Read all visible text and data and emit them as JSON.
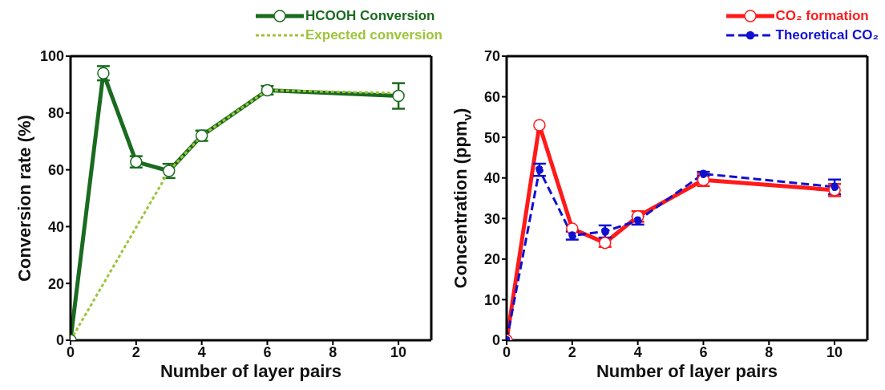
{
  "chart_data": [
    {
      "type": "line",
      "xlabel": "Number of layer pairs",
      "ylabel": "Conversion rate (%)",
      "xlim": [
        0,
        11
      ],
      "xticks": [
        0,
        2,
        4,
        6,
        8,
        10
      ],
      "ylim": [
        0,
        100
      ],
      "yticks": [
        0,
        20,
        40,
        60,
        80,
        100
      ],
      "legend": "top right",
      "series": [
        {
          "name": "HCOOH Conversion",
          "color": "#1a6b1f",
          "x": [
            0,
            1,
            2,
            3,
            4,
            6,
            10
          ],
          "values": [
            0,
            94,
            62.8,
            59.6,
            72,
            88,
            86
          ],
          "errors": [
            null,
            2.5,
            2,
            2.5,
            1.8,
            1.5,
            4.5
          ],
          "marker": "circle",
          "line_style": "solid"
        },
        {
          "name": "Expected conversion",
          "color": "#9dc43a",
          "x": [
            0,
            3,
            4,
            6,
            10
          ],
          "values": [
            0,
            59.6,
            72,
            88,
            87
          ],
          "marker": "none",
          "line_style": "dotted"
        }
      ]
    },
    {
      "type": "line",
      "xlabel": "Number of layer pairs",
      "ylabel": "Concentration (ppm$_{v}$)",
      "xlim": [
        0,
        11
      ],
      "xticks": [
        0,
        2,
        4,
        6,
        8,
        10
      ],
      "ylim": [
        0,
        70
      ],
      "yticks": [
        0,
        10,
        20,
        30,
        40,
        50,
        60,
        70
      ],
      "legend": "top right",
      "series": [
        {
          "name": "CO₂ formation",
          "color": "#ff1a1a",
          "x": [
            0,
            1,
            2,
            3,
            4,
            6,
            10
          ],
          "values": [
            0,
            53,
            27.5,
            24,
            30.5,
            39.5,
            37
          ],
          "errors": [
            null,
            null,
            null,
            1,
            1.3,
            1.5,
            1.5
          ],
          "marker": "circle",
          "line_style": "solid"
        },
        {
          "name": "Theoretical CO₂",
          "color": "#1010d0",
          "x": [
            0,
            1,
            2,
            3,
            4,
            6,
            10
          ],
          "values": [
            0,
            42,
            25.8,
            26.8,
            29.5,
            41,
            37.8
          ],
          "errors": [
            null,
            1.5,
            1,
            1.5,
            1,
            0.5,
            1.8
          ],
          "marker": "circle",
          "line_style": "dashed"
        }
      ]
    }
  ]
}
